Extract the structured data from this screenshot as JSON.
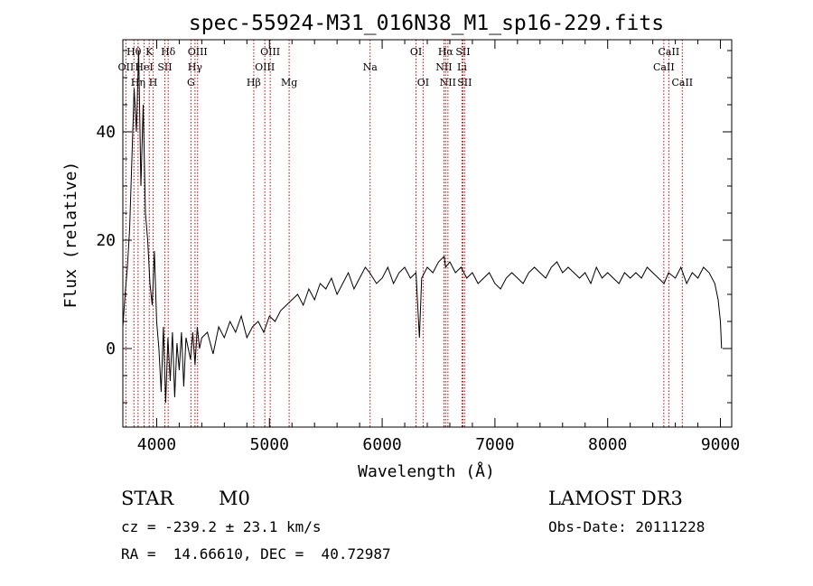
{
  "chart_data": {
    "type": "line",
    "title": "spec-55924-M31_016N38_M1_sp16-229.fits",
    "xlabel": "Wavelength (Å)",
    "ylabel": "Flux (relative)",
    "xlim": [
      3700,
      9100
    ],
    "ylim": [
      -14.5,
      57
    ],
    "xticks": [
      4000,
      5000,
      6000,
      7000,
      8000,
      9000
    ],
    "xtick_labels": [
      "4000",
      "5000",
      "6000",
      "7000",
      "8000",
      "9000"
    ],
    "yticks": [
      0,
      20,
      40
    ],
    "ytick_labels": [
      "0",
      "20",
      "40"
    ],
    "grid": false,
    "series": [
      {
        "name": "spectrum",
        "x": [
          3700,
          3720,
          3740,
          3760,
          3780,
          3800,
          3820,
          3840,
          3860,
          3880,
          3900,
          3920,
          3940,
          3960,
          3980,
          4000,
          4020,
          4040,
          4060,
          4080,
          4100,
          4120,
          4140,
          4160,
          4180,
          4200,
          4220,
          4240,
          4260,
          4280,
          4300,
          4320,
          4340,
          4360,
          4380,
          4400,
          4450,
          4500,
          4550,
          4600,
          4650,
          4700,
          4750,
          4800,
          4850,
          4900,
          4950,
          5000,
          5050,
          5100,
          5150,
          5200,
          5250,
          5300,
          5350,
          5400,
          5450,
          5500,
          5550,
          5600,
          5650,
          5700,
          5750,
          5800,
          5850,
          5890,
          5950,
          6000,
          6050,
          6100,
          6150,
          6200,
          6250,
          6300,
          6330,
          6350,
          6400,
          6450,
          6500,
          6550,
          6563,
          6600,
          6650,
          6700,
          6750,
          6800,
          6850,
          6900,
          6950,
          7000,
          7050,
          7100,
          7150,
          7200,
          7250,
          7300,
          7350,
          7400,
          7450,
          7500,
          7550,
          7600,
          7650,
          7700,
          7750,
          7800,
          7850,
          7900,
          7950,
          8000,
          8050,
          8100,
          8150,
          8200,
          8250,
          8300,
          8350,
          8400,
          8450,
          8500,
          8540,
          8600,
          8650,
          8700,
          8750,
          8800,
          8850,
          8900,
          8950,
          8980,
          9000,
          9010
        ],
        "y": [
          4,
          10,
          15,
          22,
          35,
          48,
          40,
          55,
          30,
          45,
          25,
          20,
          12,
          8,
          18,
          5,
          0,
          -8,
          4,
          -10,
          2,
          -6,
          3,
          -9,
          1,
          -4,
          3,
          -7,
          2,
          0,
          -2,
          3,
          -3,
          4,
          0,
          2,
          3,
          -1,
          4,
          2,
          5,
          3,
          6,
          2,
          4,
          5,
          3,
          6,
          5,
          7,
          8,
          9,
          10,
          8,
          11,
          9,
          12,
          11,
          13,
          10,
          12,
          14,
          11,
          13,
          15,
          14,
          12,
          13,
          15,
          12,
          14,
          15,
          13,
          14,
          2,
          13,
          15,
          14,
          16,
          17,
          15,
          16,
          14,
          15,
          13,
          14,
          12,
          13,
          14,
          12,
          11,
          13,
          14,
          13,
          12,
          14,
          15,
          14,
          13,
          15,
          16,
          14,
          15,
          14,
          13,
          14,
          12,
          15,
          13,
          14,
          13,
          12,
          14,
          13,
          14,
          13,
          15,
          14,
          13,
          12,
          14,
          13,
          15,
          12,
          14,
          13,
          15,
          14,
          12,
          9,
          5,
          0
        ]
      }
    ],
    "lines": [
      {
        "label": "OII",
        "wavelength": 3727,
        "row": 2
      },
      {
        "label": "Hθ",
        "wavelength": 3798,
        "row": 1
      },
      {
        "label": "Hη",
        "wavelength": 3835,
        "row": 3
      },
      {
        "label": "K",
        "wavelength": 3934,
        "row": 1
      },
      {
        "label": "HeI",
        "wavelength": 3889,
        "row": 2
      },
      {
        "label": "H",
        "wavelength": 3969,
        "row": 3
      },
      {
        "label": "SII",
        "wavelength": 4072,
        "row": 2
      },
      {
        "label": "Hδ",
        "wavelength": 4102,
        "row": 1
      },
      {
        "label": "G",
        "wavelength": 4304,
        "row": 3
      },
      {
        "label": "Hγ",
        "wavelength": 4340,
        "row": 2
      },
      {
        "label": "OIII",
        "wavelength": 4363,
        "row": 1
      },
      {
        "label": "Hβ",
        "wavelength": 4861,
        "row": 3
      },
      {
        "label": "OIII",
        "wavelength": 4959,
        "row": 2
      },
      {
        "label": "OIII",
        "wavelength": 5007,
        "row": 1
      },
      {
        "label": "Mg",
        "wavelength": 5175,
        "row": 3
      },
      {
        "label": "Na",
        "wavelength": 5893,
        "row": 2
      },
      {
        "label": "OI",
        "wavelength": 6300,
        "row": 1
      },
      {
        "label": "OI",
        "wavelength": 6363,
        "row": 3
      },
      {
        "label": "NII",
        "wavelength": 6548,
        "row": 2
      },
      {
        "label": "Hα",
        "wavelength": 6563,
        "row": 1
      },
      {
        "label": "NII",
        "wavelength": 6583,
        "row": 3
      },
      {
        "label": "Li",
        "wavelength": 6708,
        "row": 2
      },
      {
        "label": "SII",
        "wavelength": 6716,
        "row": 1
      },
      {
        "label": "SII",
        "wavelength": 6731,
        "row": 3
      },
      {
        "label": "CaII",
        "wavelength": 8498,
        "row": 2
      },
      {
        "label": "CaII",
        "wavelength": 8542,
        "row": 1
      },
      {
        "label": "CaII",
        "wavelength": 8662,
        "row": 3
      }
    ],
    "line_color": "#cc0000"
  },
  "footer": {
    "object_class": "STAR",
    "subclass": "M0",
    "survey": "LAMOST DR3",
    "redshift": "cz = -239.2 ± 23.1 km/s",
    "obs_date": "Obs-Date: 20111228",
    "coords": "RA =  14.66610, DEC =  40.72987"
  }
}
